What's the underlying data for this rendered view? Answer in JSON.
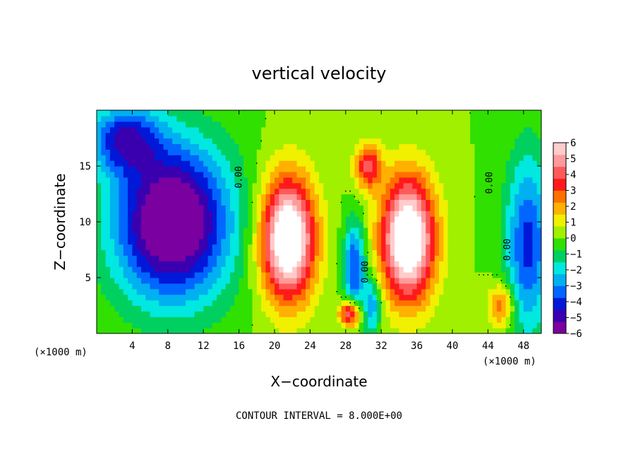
{
  "chart_data": {
    "type": "heatmap",
    "title": "vertical velocity",
    "xlabel": "X−coordinate",
    "ylabel": "Z−coordinate",
    "x_unit_left": "(×1000 m)",
    "x_unit_right": "(×1000 m)",
    "xlim": [
      0,
      50
    ],
    "ylim": [
      0,
      20
    ],
    "xticks": [
      4,
      8,
      12,
      16,
      20,
      24,
      28,
      32,
      36,
      40,
      44,
      48
    ],
    "yticks": [
      5,
      10,
      15
    ],
    "colorbar": {
      "range": [
        -6,
        6
      ],
      "ticks": [
        6,
        5,
        4,
        3,
        2,
        1,
        0,
        -1,
        -2,
        -3,
        -4,
        -5,
        -6
      ],
      "colors": [
        "#7a00a0",
        "#3a00b0",
        "#0018d8",
        "#0066ff",
        "#00b0f0",
        "#00e8e0",
        "#00d060",
        "#30e000",
        "#a0f000",
        "#f0f000",
        "#ffb000",
        "#ff7000",
        "#ff1a1a",
        "#ff5a5a",
        "#ff9a9a",
        "#ffcccc"
      ]
    },
    "contour_label": "0.00",
    "annotation": "CONTOUR INTERVAL = 8.000E+00",
    "features": [
      {
        "kind": "downdraft",
        "x": 8.5,
        "z": 10,
        "rx": 6.5,
        "rz": 7,
        "w": -7
      },
      {
        "kind": "downdraft",
        "x": 3,
        "z": 17.5,
        "rx": 4,
        "rz": 3,
        "w": -4
      },
      {
        "kind": "downdraft",
        "x": 48.5,
        "z": 8,
        "rx": 2.5,
        "rz": 8,
        "w": -4
      },
      {
        "kind": "downdraft",
        "x": 29,
        "z": 6,
        "rx": 1.2,
        "rz": 4,
        "w": -4
      },
      {
        "kind": "downdraft",
        "x": 31,
        "z": 2.5,
        "rx": 1,
        "rz": 2.5,
        "w": -3
      },
      {
        "kind": "updraft",
        "x": 21.5,
        "z": 8.5,
        "rx": 3,
        "rz": 5.5,
        "w": 8
      },
      {
        "kind": "updraft",
        "x": 35,
        "z": 8.5,
        "rx": 3,
        "rz": 5.5,
        "w": 8
      },
      {
        "kind": "updraft",
        "x": 28.5,
        "z": 1.8,
        "rx": 1.2,
        "rz": 1.2,
        "w": 5
      },
      {
        "kind": "updraft",
        "x": 30.5,
        "z": 15,
        "rx": 1.5,
        "rz": 2,
        "w": 4
      },
      {
        "kind": "updraft",
        "x": 45.5,
        "z": 2.5,
        "rx": 1.5,
        "rz": 2,
        "w": 3
      }
    ],
    "grid": false,
    "legend": "right"
  }
}
